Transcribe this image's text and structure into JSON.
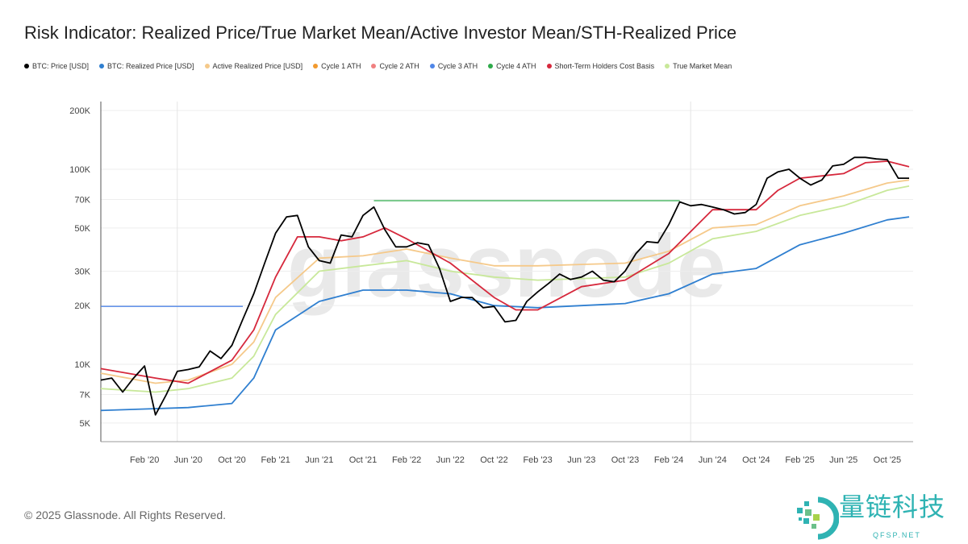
{
  "chart_data": {
    "type": "line",
    "title": "Risk Indicator: Realized Price/True Market Mean/Active Investor Mean/STH-Realized Price",
    "y_scale": "log",
    "ylim": [
      4000,
      200000
    ],
    "xlim": [
      "2019-10",
      "2025-12"
    ],
    "y_ticks": [
      {
        "v": 5000,
        "label": "5K"
      },
      {
        "v": 7000,
        "label": "7K"
      },
      {
        "v": 10000,
        "label": "10K"
      },
      {
        "v": 20000,
        "label": "20K"
      },
      {
        "v": 30000,
        "label": "30K"
      },
      {
        "v": 50000,
        "label": "50K"
      },
      {
        "v": 70000,
        "label": "70K"
      },
      {
        "v": 100000,
        "label": "100K"
      },
      {
        "v": 200000,
        "label": "200K"
      }
    ],
    "x_ticks": [
      {
        "d": "2020-02",
        "label": "Feb '20"
      },
      {
        "d": "2020-06",
        "label": "Jun '20"
      },
      {
        "d": "2020-10",
        "label": "Oct '20"
      },
      {
        "d": "2021-02",
        "label": "Feb '21"
      },
      {
        "d": "2021-06",
        "label": "Jun '21"
      },
      {
        "d": "2021-10",
        "label": "Oct '21"
      },
      {
        "d": "2022-02",
        "label": "Feb '22"
      },
      {
        "d": "2022-06",
        "label": "Jun '22"
      },
      {
        "d": "2022-10",
        "label": "Oct '22"
      },
      {
        "d": "2023-02",
        "label": "Feb '23"
      },
      {
        "d": "2023-06",
        "label": "Jun '23"
      },
      {
        "d": "2023-10",
        "label": "Oct '23"
      },
      {
        "d": "2024-02",
        "label": "Feb '24"
      },
      {
        "d": "2024-06",
        "label": "Jun '24"
      },
      {
        "d": "2024-10",
        "label": "Oct '24"
      },
      {
        "d": "2025-02",
        "label": "Feb '25"
      },
      {
        "d": "2025-06",
        "label": "Jun '25"
      },
      {
        "d": "2025-10",
        "label": "Oct '25"
      }
    ],
    "vertical_markers": [
      "2020-05",
      "2024-04"
    ],
    "grid": "horizontal",
    "legend_position": "top",
    "series": [
      {
        "name": "BTC: Price [USD]",
        "color": "#000000",
        "points": [
          [
            "2019-10",
            8300
          ],
          [
            "2019-11",
            8500
          ],
          [
            "2019-12",
            7200
          ],
          [
            "2020-01",
            8500
          ],
          [
            "2020-02",
            9800
          ],
          [
            "2020-03",
            5500
          ],
          [
            "2020-04",
            7000
          ],
          [
            "2020-05",
            9200
          ],
          [
            "2020-06",
            9400
          ],
          [
            "2020-07",
            9700
          ],
          [
            "2020-08",
            11700
          ],
          [
            "2020-09",
            10700
          ],
          [
            "2020-10",
            12500
          ],
          [
            "2020-11",
            17000
          ],
          [
            "2020-12",
            23000
          ],
          [
            "2021-01",
            33000
          ],
          [
            "2021-02",
            47000
          ],
          [
            "2021-03",
            57000
          ],
          [
            "2021-04",
            58000
          ],
          [
            "2021-05",
            40000
          ],
          [
            "2021-06",
            34000
          ],
          [
            "2021-07",
            33000
          ],
          [
            "2021-08",
            46000
          ],
          [
            "2021-09",
            45000
          ],
          [
            "2021-10",
            58000
          ],
          [
            "2021-11",
            64000
          ],
          [
            "2021-12",
            49000
          ],
          [
            "2022-01",
            40000
          ],
          [
            "2022-02",
            40000
          ],
          [
            "2022-03",
            42000
          ],
          [
            "2022-04",
            41000
          ],
          [
            "2022-05",
            31000
          ],
          [
            "2022-06",
            21000
          ],
          [
            "2022-07",
            22000
          ],
          [
            "2022-08",
            22000
          ],
          [
            "2022-09",
            19500
          ],
          [
            "2022-10",
            19800
          ],
          [
            "2022-11",
            16500
          ],
          [
            "2022-12",
            16800
          ],
          [
            "2023-01",
            21000
          ],
          [
            "2023-02",
            23500
          ],
          [
            "2023-03",
            26000
          ],
          [
            "2023-04",
            29000
          ],
          [
            "2023-05",
            27200
          ],
          [
            "2023-06",
            28000
          ],
          [
            "2023-07",
            30000
          ],
          [
            "2023-08",
            27000
          ],
          [
            "2023-09",
            26500
          ],
          [
            "2023-10",
            30000
          ],
          [
            "2023-11",
            37000
          ],
          [
            "2023-12",
            42500
          ],
          [
            "2024-01",
            42000
          ],
          [
            "2024-02",
            52000
          ],
          [
            "2024-03",
            68000
          ],
          [
            "2024-04",
            65000
          ],
          [
            "2024-05",
            66000
          ],
          [
            "2024-06",
            64000
          ],
          [
            "2024-07",
            62000
          ],
          [
            "2024-08",
            59000
          ],
          [
            "2024-09",
            60000
          ],
          [
            "2024-10",
            66000
          ],
          [
            "2024-11",
            90000
          ],
          [
            "2024-12",
            97000
          ],
          [
            "2025-01",
            100000
          ],
          [
            "2025-02",
            90000
          ],
          [
            "2025-03",
            83000
          ],
          [
            "2025-04",
            88000
          ],
          [
            "2025-05",
            104000
          ],
          [
            "2025-06",
            106000
          ],
          [
            "2025-07",
            115000
          ],
          [
            "2025-08",
            115000
          ],
          [
            "2025-09",
            113000
          ],
          [
            "2025-10",
            112000
          ],
          [
            "2025-11",
            90000
          ],
          [
            "2025-12",
            90000
          ]
        ]
      },
      {
        "name": "BTC: Realized Price [USD]",
        "color": "#2f7fd0",
        "points": [
          [
            "2019-10",
            5800
          ],
          [
            "2020-02",
            5900
          ],
          [
            "2020-06",
            6000
          ],
          [
            "2020-10",
            6300
          ],
          [
            "2020-12",
            8500
          ],
          [
            "2021-02",
            15000
          ],
          [
            "2021-06",
            21000
          ],
          [
            "2021-10",
            24000
          ],
          [
            "2022-02",
            24000
          ],
          [
            "2022-06",
            23000
          ],
          [
            "2022-10",
            20000
          ],
          [
            "2023-02",
            19500
          ],
          [
            "2023-06",
            20000
          ],
          [
            "2023-10",
            20500
          ],
          [
            "2024-02",
            23000
          ],
          [
            "2024-06",
            29000
          ],
          [
            "2024-10",
            31000
          ],
          [
            "2025-02",
            41000
          ],
          [
            "2025-06",
            47000
          ],
          [
            "2025-10",
            55000
          ],
          [
            "2025-12",
            57000
          ]
        ]
      },
      {
        "name": "Active Realized Price [USD]",
        "color": "#f5c98a",
        "points": [
          [
            "2019-10",
            9000
          ],
          [
            "2020-03",
            8000
          ],
          [
            "2020-06",
            8300
          ],
          [
            "2020-10",
            10000
          ],
          [
            "2020-12",
            13000
          ],
          [
            "2021-02",
            22000
          ],
          [
            "2021-06",
            35000
          ],
          [
            "2021-10",
            36000
          ],
          [
            "2022-02",
            39000
          ],
          [
            "2022-06",
            35000
          ],
          [
            "2022-10",
            32000
          ],
          [
            "2023-02",
            32000
          ],
          [
            "2023-06",
            32500
          ],
          [
            "2023-10",
            33000
          ],
          [
            "2024-02",
            38000
          ],
          [
            "2024-06",
            50000
          ],
          [
            "2024-10",
            52000
          ],
          [
            "2025-02",
            65000
          ],
          [
            "2025-06",
            73000
          ],
          [
            "2025-10",
            85000
          ],
          [
            "2025-12",
            88000
          ]
        ]
      },
      {
        "name": "Cycle 1 ATH",
        "color": "#f29a2e",
        "points": []
      },
      {
        "name": "Cycle 2 ATH",
        "color": "#f08080",
        "points": []
      },
      {
        "name": "Cycle 3 ATH",
        "color": "#4f86e8",
        "points": [
          [
            "2019-10",
            19800
          ],
          [
            "2020-11",
            19800
          ]
        ]
      },
      {
        "name": "Cycle 4 ATH",
        "color": "#2eaa4a",
        "points": [
          [
            "2021-11",
            69000
          ],
          [
            "2024-03",
            69000
          ]
        ]
      },
      {
        "name": "Short-Term Holders Cost Basis",
        "color": "#d6283c",
        "points": [
          [
            "2019-10",
            9500
          ],
          [
            "2020-03",
            8500
          ],
          [
            "2020-06",
            8000
          ],
          [
            "2020-10",
            10500
          ],
          [
            "2020-12",
            15000
          ],
          [
            "2021-02",
            28000
          ],
          [
            "2021-04",
            45000
          ],
          [
            "2021-06",
            45000
          ],
          [
            "2021-08",
            43000
          ],
          [
            "2021-10",
            45000
          ],
          [
            "2021-12",
            50000
          ],
          [
            "2022-02",
            44000
          ],
          [
            "2022-06",
            33000
          ],
          [
            "2022-10",
            22000
          ],
          [
            "2022-12",
            19000
          ],
          [
            "2023-02",
            19000
          ],
          [
            "2023-06",
            25000
          ],
          [
            "2023-10",
            27000
          ],
          [
            "2024-02",
            37000
          ],
          [
            "2024-06",
            62000
          ],
          [
            "2024-10",
            62000
          ],
          [
            "2024-12",
            78000
          ],
          [
            "2025-02",
            90000
          ],
          [
            "2025-06",
            95000
          ],
          [
            "2025-08",
            108000
          ],
          [
            "2025-10",
            110000
          ],
          [
            "2025-12",
            103000
          ]
        ]
      },
      {
        "name": "True Market Mean",
        "color": "#c8e89a",
        "points": [
          [
            "2019-10",
            7500
          ],
          [
            "2020-03",
            7200
          ],
          [
            "2020-06",
            7500
          ],
          [
            "2020-10",
            8500
          ],
          [
            "2020-12",
            11000
          ],
          [
            "2021-02",
            18000
          ],
          [
            "2021-06",
            30000
          ],
          [
            "2021-10",
            32000
          ],
          [
            "2022-02",
            34000
          ],
          [
            "2022-06",
            30000
          ],
          [
            "2022-10",
            28000
          ],
          [
            "2023-02",
            27000
          ],
          [
            "2023-06",
            27500
          ],
          [
            "2023-10",
            28000
          ],
          [
            "2024-02",
            33000
          ],
          [
            "2024-06",
            44000
          ],
          [
            "2024-10",
            48000
          ],
          [
            "2025-02",
            58000
          ],
          [
            "2025-06",
            65000
          ],
          [
            "2025-10",
            78000
          ],
          [
            "2025-12",
            82000
          ]
        ]
      }
    ]
  },
  "watermark": "glassnode",
  "footer": "© 2025 Glassnode. All Rights Reserved.",
  "logo": {
    "cn": "量链科技",
    "en": "QFSP.NET"
  }
}
